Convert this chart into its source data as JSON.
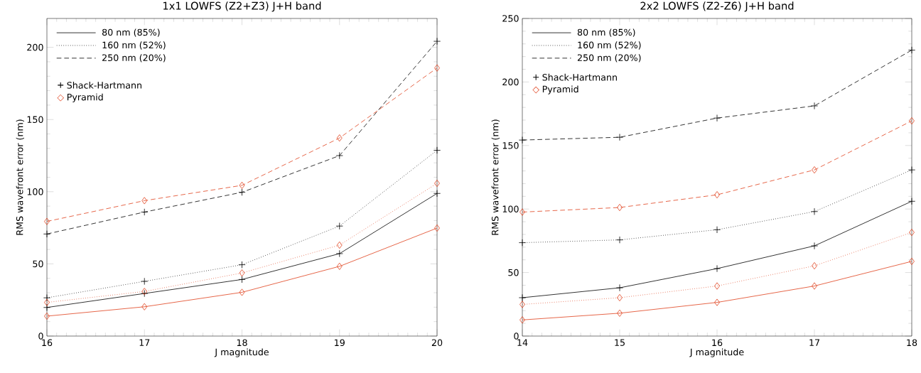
{
  "chart_data": [
    {
      "type": "line",
      "title": "1x1 LOWFS (Z2+Z3) J+H band",
      "xlabel": "J magnitude",
      "ylabel": "RMS wavefront error (nm)",
      "x": [
        16,
        17,
        18,
        19,
        20
      ],
      "xlim": [
        16,
        20
      ],
      "ylim": [
        0,
        220
      ],
      "xticks": [
        16,
        17,
        18,
        19,
        20
      ],
      "yticks": [
        0,
        50,
        100,
        150,
        200
      ],
      "annotations": [
        "80 nm (85%)",
        "160 nm (52%)",
        "250 nm (20%)",
        "+",
        "Shack-Hartmann",
        "◇",
        "Pyramid"
      ],
      "series": [
        {
          "color": "#000000",
          "line_style": "solid",
          "marker": "cross",
          "values": [
            19.8,
            29.5,
            39.2,
            57.1,
            98.8
          ]
        },
        {
          "color": "#000000",
          "line_style": "dotted",
          "marker": "cross",
          "values": [
            26.5,
            37.9,
            49.4,
            76.2,
            128.7
          ]
        },
        {
          "color": "#000000",
          "line_style": "dashed",
          "marker": "cross",
          "values": [
            70.7,
            85.9,
            99.6,
            125,
            204.2
          ]
        },
        {
          "color": "#e0401c",
          "line_style": "solid",
          "marker": "diamond",
          "values": [
            13.8,
            20.3,
            30.3,
            48.3,
            74.8
          ]
        },
        {
          "color": "#e0401c",
          "line_style": "dotted",
          "marker": "diamond",
          "values": [
            23.3,
            30.9,
            43.7,
            63,
            105.8
          ]
        },
        {
          "color": "#e0401c",
          "line_style": "dashed",
          "marker": "diamond",
          "values": [
            79.4,
            93.8,
            104.4,
            137.2,
            185.7
          ]
        }
      ]
    },
    {
      "type": "line",
      "title": "2x2 LOWFS (Z2-Z6) J+H band",
      "xlabel": "J magnitude",
      "ylabel": "RMS wavefront error (nm)",
      "x": [
        14,
        15,
        16,
        17,
        18
      ],
      "xlim": [
        14,
        18
      ],
      "ylim": [
        0,
        250
      ],
      "xticks": [
        14,
        15,
        16,
        17,
        18
      ],
      "yticks": [
        0,
        50,
        100,
        150,
        200,
        250
      ],
      "annotations": [
        "80 nm (85%)",
        "160 nm (52%)",
        "250 nm (20%)",
        "+",
        "Shack-Hartmann",
        "◇",
        "Pyramid"
      ],
      "series": [
        {
          "color": "#000000",
          "line_style": "solid",
          "marker": "cross",
          "values": [
            30.2,
            38,
            53.1,
            71,
            106.1
          ]
        },
        {
          "color": "#000000",
          "line_style": "dotted",
          "marker": "cross",
          "values": [
            73.5,
            75.7,
            83.7,
            98,
            130.8
          ]
        },
        {
          "color": "#000000",
          "line_style": "dashed",
          "marker": "cross",
          "values": [
            154.3,
            156.5,
            171.6,
            181.2,
            225.1
          ]
        },
        {
          "color": "#e0401c",
          "line_style": "solid",
          "marker": "diamond",
          "values": [
            12.7,
            18,
            26.5,
            39.4,
            58.8
          ]
        },
        {
          "color": "#e0401c",
          "line_style": "dotted",
          "marker": "diamond",
          "values": [
            24.9,
            30.2,
            39.4,
            55.3,
            81.6
          ]
        },
        {
          "color": "#e0401c",
          "line_style": "dashed",
          "marker": "diamond",
          "values": [
            97.6,
            101.2,
            111.2,
            130.8,
            169.4
          ]
        }
      ]
    }
  ]
}
